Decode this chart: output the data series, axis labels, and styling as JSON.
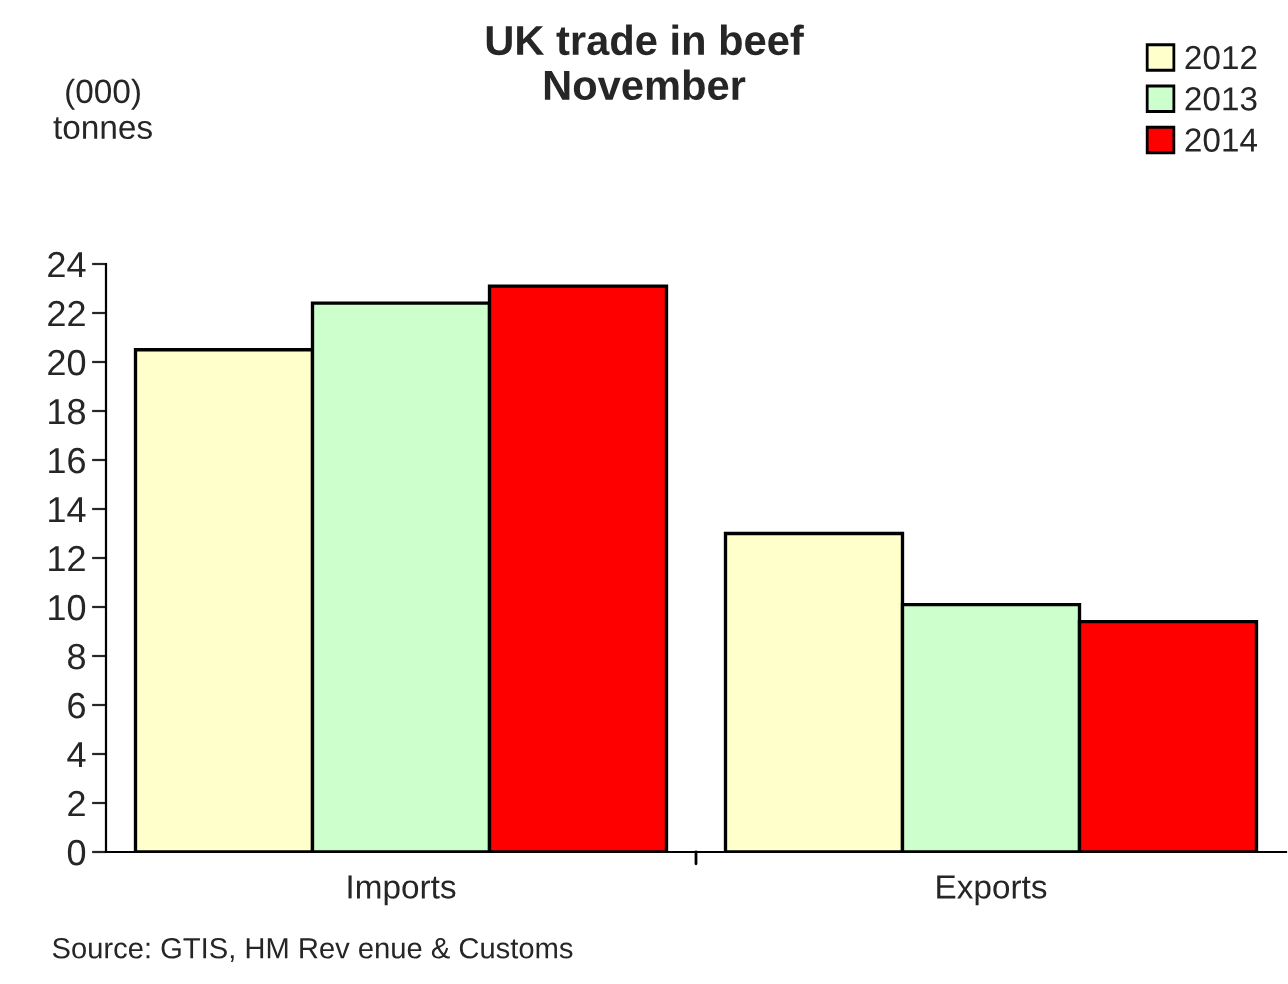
{
  "chart_data": {
    "type": "bar",
    "title": "UK trade in beef\nNovember",
    "ylabel": "(000)\ntonnes",
    "categories": [
      "Imports",
      "Exports"
    ],
    "series": [
      {
        "name": "2012",
        "color": "#ffffcc",
        "values": [
          20.5,
          13.0
        ]
      },
      {
        "name": "2013",
        "color": "#ccffcc",
        "values": [
          22.4,
          10.1
        ]
      },
      {
        "name": "2014",
        "color": "#ff0000",
        "values": [
          23.1,
          9.4
        ]
      }
    ],
    "ylim": [
      0,
      24
    ],
    "yticks": [
      0,
      2,
      4,
      6,
      8,
      10,
      12,
      14,
      16,
      18,
      20,
      22,
      24
    ],
    "grid": false,
    "legend": "top right",
    "annotations": [
      "Source: GTIS, HM Rev enue & Customs"
    ]
  }
}
